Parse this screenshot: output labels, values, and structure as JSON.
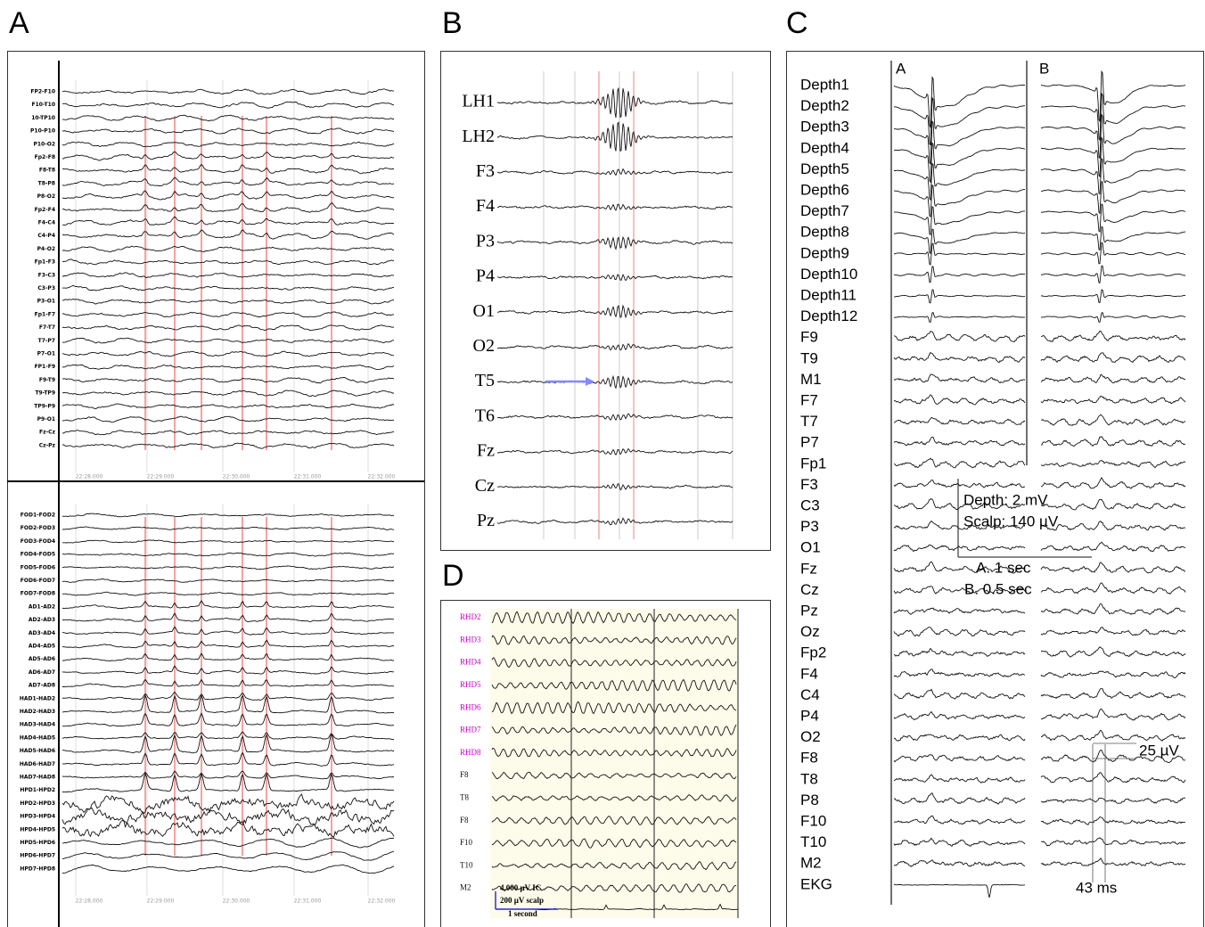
{
  "panels": {
    "A": {
      "label": "A",
      "top_channels": [
        "FP2-F10",
        "F10-T10",
        "10-TP10",
        "P10-P10",
        "P10-O2",
        "Fp2-F8",
        "F8-T8",
        "T8-P8",
        "P8-O2",
        "Fp2-F4",
        "F4-C4",
        "C4-P4",
        "P4-O2",
        "Fp1-F3",
        "F3-C3",
        "C3-P3",
        "P3-O1",
        "Fp1-F7",
        "F7-T7",
        "T7-P7",
        "P7-O1",
        "FP1-F9",
        "F9-T9",
        "T9-TP9",
        "TP9-P9",
        "P9-O1",
        "Fz-Cz",
        "Cz-Pz"
      ],
      "bottom_channels": [
        "FOD1-FOD2",
        "FOD2-FOD3",
        "FOD3-FOD4",
        "FOD4-FOD5",
        "FOD5-FOD6",
        "FOD6-FOD7",
        "FOD7-FOD8",
        "AD1-AD2",
        "AD2-AD3",
        "AD3-AD4",
        "AD4-AD5",
        "AD5-AD6",
        "AD6-AD7",
        "AD7-AD8",
        "HAD1-HAD2",
        "HAD2-HAD3",
        "HAD3-HAD4",
        "HAD4-HAD5",
        "HAD5-HAD6",
        "HAD6-HAD7",
        "HAD7-HAD8",
        "HPD1-HPD2",
        "HPD2-HPD3",
        "HPD3-HPD4",
        "HPD4-HPD5",
        "HPD5-HPD6",
        "HPD6-HPD7",
        "HPD7-HPD8"
      ],
      "top_times": [
        "22:28.000",
        "22:29.000",
        "22:30.000",
        "22:31.000",
        "22:32.000"
      ],
      "bottom_times": [
        "22:28.000",
        "22:29.000",
        "22:30.000",
        "22:31.000",
        "22:32.000"
      ]
    },
    "B": {
      "label": "B",
      "channels": [
        "LH1",
        "LH2",
        "F3",
        "F4",
        "P3",
        "P4",
        "O1",
        "O2",
        "T5",
        "T6",
        "Fz",
        "Cz",
        "Pz"
      ]
    },
    "C": {
      "label": "C",
      "sub_labels": [
        "A",
        "B"
      ],
      "channels": [
        "Depth1",
        "Depth2",
        "Depth3",
        "Depth4",
        "Depth5",
        "Depth6",
        "Depth7",
        "Depth8",
        "Depth9",
        "Depth10",
        "Depth11",
        "Depth12",
        "F9",
        "T9",
        "M1",
        "F7",
        "T7",
        "P7",
        "Fp1",
        "F3",
        "C3",
        "P3",
        "O1",
        "Fz",
        "Cz",
        "Pz",
        "Oz",
        "Fp2",
        "F4",
        "C4",
        "P4",
        "O2",
        "F8",
        "T8",
        "P8",
        "F10",
        "T10",
        "M2",
        "EKG"
      ],
      "scale": {
        "depth": "Depth: 2 mV",
        "scalp": "Scalp: 140 µV",
        "a": "A. 1 sec",
        "b": "B. 0.5 sec",
        "amp": "25 µV",
        "dur": "43 ms"
      }
    },
    "D": {
      "label": "D",
      "channels": [
        "RHD2",
        "RHD3",
        "RHD4",
        "RHD5",
        "RHD6",
        "RHD7",
        "RHD8",
        "F8",
        "T8",
        "F8",
        "F10",
        "T10",
        "M2"
      ],
      "scale": [
        "4,000 µV IC",
        "200 µV scalp",
        "1 second"
      ]
    }
  }
}
